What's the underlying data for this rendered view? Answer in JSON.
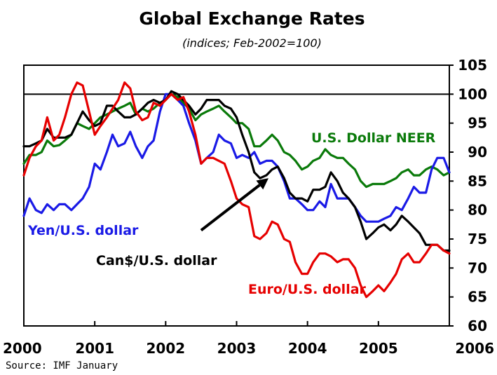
{
  "chart_data": {
    "type": "line",
    "title": "Global Exchange Rates",
    "subtitle": "(indices; Feb-2002=100)",
    "xlabel": "",
    "ylabel": "",
    "xlim": [
      2000,
      2006
    ],
    "ylim": [
      60,
      105
    ],
    "x_ticks": [
      "2000",
      "2001",
      "2002",
      "2003",
      "2004",
      "2005",
      "2006"
    ],
    "y_ticks": [
      60,
      65,
      70,
      75,
      80,
      85,
      90,
      95,
      100,
      105
    ],
    "reference_line": 100,
    "grid": false,
    "source": "Source: IMF January",
    "series": [
      {
        "name": "U.S. Dollar NEER",
        "color": "#0a7a0a",
        "points": [
          [
            2000.0,
            88
          ],
          [
            2000.08,
            89.5
          ],
          [
            2000.17,
            89.5
          ],
          [
            2000.25,
            90
          ],
          [
            2000.33,
            92
          ],
          [
            2000.42,
            91
          ],
          [
            2000.5,
            91.2
          ],
          [
            2000.58,
            92
          ],
          [
            2000.67,
            93
          ],
          [
            2000.75,
            95
          ],
          [
            2000.83,
            94.5
          ],
          [
            2000.92,
            94
          ],
          [
            2001.0,
            95
          ],
          [
            2001.08,
            96
          ],
          [
            2001.17,
            96.5
          ],
          [
            2001.25,
            97
          ],
          [
            2001.33,
            97.5
          ],
          [
            2001.42,
            98
          ],
          [
            2001.5,
            98.5
          ],
          [
            2001.58,
            96.5
          ],
          [
            2001.67,
            97.5
          ],
          [
            2001.75,
            97
          ],
          [
            2001.83,
            97.5
          ],
          [
            2001.92,
            98.5
          ],
          [
            2002.0,
            99
          ],
          [
            2002.08,
            100
          ],
          [
            2002.17,
            99.5
          ],
          [
            2002.25,
            98.5
          ],
          [
            2002.33,
            97.5
          ],
          [
            2002.42,
            95.5
          ],
          [
            2002.5,
            96.5
          ],
          [
            2002.58,
            97
          ],
          [
            2002.67,
            97.5
          ],
          [
            2002.75,
            98
          ],
          [
            2002.83,
            97
          ],
          [
            2002.92,
            96
          ],
          [
            2003.0,
            95
          ],
          [
            2003.08,
            95
          ],
          [
            2003.17,
            94
          ],
          [
            2003.25,
            91
          ],
          [
            2003.33,
            91
          ],
          [
            2003.42,
            92
          ],
          [
            2003.5,
            93
          ],
          [
            2003.58,
            92
          ],
          [
            2003.67,
            90
          ],
          [
            2003.75,
            89.5
          ],
          [
            2003.83,
            88.5
          ],
          [
            2003.92,
            87
          ],
          [
            2004.0,
            87.5
          ],
          [
            2004.08,
            88.5
          ],
          [
            2004.17,
            89
          ],
          [
            2004.25,
            90.5
          ],
          [
            2004.33,
            89.5
          ],
          [
            2004.42,
            89
          ],
          [
            2004.5,
            89
          ],
          [
            2004.58,
            88
          ],
          [
            2004.67,
            87
          ],
          [
            2004.75,
            85
          ],
          [
            2004.83,
            84
          ],
          [
            2004.92,
            84.5
          ],
          [
            2005.0,
            84.5
          ],
          [
            2005.08,
            84.5
          ],
          [
            2005.17,
            85
          ],
          [
            2005.25,
            85.5
          ],
          [
            2005.33,
            86.5
          ],
          [
            2005.42,
            87
          ],
          [
            2005.5,
            86
          ],
          [
            2005.58,
            86
          ],
          [
            2005.67,
            87
          ],
          [
            2005.75,
            87.5
          ],
          [
            2005.83,
            87
          ],
          [
            2005.92,
            86
          ],
          [
            2006.0,
            86.5
          ]
        ]
      },
      {
        "name": "Yen/U.S. dollar",
        "color": "#1a1ae6",
        "points": [
          [
            2000.0,
            79
          ],
          [
            2000.08,
            82
          ],
          [
            2000.17,
            80
          ],
          [
            2000.25,
            79.5
          ],
          [
            2000.33,
            81
          ],
          [
            2000.42,
            80
          ],
          [
            2000.5,
            81
          ],
          [
            2000.58,
            81
          ],
          [
            2000.67,
            80
          ],
          [
            2000.75,
            81
          ],
          [
            2000.83,
            82
          ],
          [
            2000.92,
            84
          ],
          [
            2001.0,
            88
          ],
          [
            2001.08,
            87
          ],
          [
            2001.17,
            90
          ],
          [
            2001.25,
            93
          ],
          [
            2001.33,
            91
          ],
          [
            2001.42,
            91.5
          ],
          [
            2001.5,
            93.5
          ],
          [
            2001.58,
            91
          ],
          [
            2001.67,
            89
          ],
          [
            2001.75,
            91
          ],
          [
            2001.83,
            92
          ],
          [
            2001.92,
            97
          ],
          [
            2002.0,
            100
          ],
          [
            2002.08,
            100
          ],
          [
            2002.17,
            99
          ],
          [
            2002.25,
            98
          ],
          [
            2002.33,
            95
          ],
          [
            2002.42,
            92
          ],
          [
            2002.5,
            88
          ],
          [
            2002.58,
            89
          ],
          [
            2002.67,
            90
          ],
          [
            2002.75,
            93
          ],
          [
            2002.83,
            92
          ],
          [
            2002.92,
            91.5
          ],
          [
            2003.0,
            89
          ],
          [
            2003.08,
            89.5
          ],
          [
            2003.17,
            89
          ],
          [
            2003.25,
            90
          ],
          [
            2003.33,
            88
          ],
          [
            2003.42,
            88.5
          ],
          [
            2003.5,
            88.5
          ],
          [
            2003.58,
            87.5
          ],
          [
            2003.67,
            85
          ],
          [
            2003.75,
            82
          ],
          [
            2003.83,
            82
          ],
          [
            2003.92,
            81
          ],
          [
            2004.0,
            80
          ],
          [
            2004.08,
            80
          ],
          [
            2004.17,
            81.5
          ],
          [
            2004.25,
            80.5
          ],
          [
            2004.33,
            84.5
          ],
          [
            2004.42,
            82
          ],
          [
            2004.5,
            82
          ],
          [
            2004.58,
            82
          ],
          [
            2004.67,
            80.5
          ],
          [
            2004.75,
            79
          ],
          [
            2004.83,
            78
          ],
          [
            2004.92,
            78
          ],
          [
            2005.0,
            78
          ],
          [
            2005.08,
            78.5
          ],
          [
            2005.17,
            79
          ],
          [
            2005.25,
            80.5
          ],
          [
            2005.33,
            80
          ],
          [
            2005.42,
            82
          ],
          [
            2005.5,
            84
          ],
          [
            2005.58,
            83
          ],
          [
            2005.67,
            83
          ],
          [
            2005.75,
            87
          ],
          [
            2005.83,
            89
          ],
          [
            2005.92,
            89
          ],
          [
            2006.0,
            86.5
          ]
        ]
      },
      {
        "name": "Can$/U.S. dollar",
        "color": "#000000",
        "points": [
          [
            2000.0,
            91
          ],
          [
            2000.08,
            91
          ],
          [
            2000.17,
            91.5
          ],
          [
            2000.25,
            92
          ],
          [
            2000.33,
            94
          ],
          [
            2000.42,
            92.5
          ],
          [
            2000.5,
            92.5
          ],
          [
            2000.58,
            92.5
          ],
          [
            2000.67,
            93
          ],
          [
            2000.75,
            95
          ],
          [
            2000.83,
            97
          ],
          [
            2000.92,
            95.5
          ],
          [
            2001.0,
            94.5
          ],
          [
            2001.08,
            95
          ],
          [
            2001.17,
            98
          ],
          [
            2001.25,
            98
          ],
          [
            2001.33,
            97
          ],
          [
            2001.42,
            96
          ],
          [
            2001.5,
            96
          ],
          [
            2001.58,
            96.5
          ],
          [
            2001.67,
            97.5
          ],
          [
            2001.75,
            98.5
          ],
          [
            2001.83,
            99
          ],
          [
            2001.92,
            98.5
          ],
          [
            2002.0,
            99
          ],
          [
            2002.08,
            100.5
          ],
          [
            2002.17,
            100
          ],
          [
            2002.25,
            99
          ],
          [
            2002.33,
            98
          ],
          [
            2002.42,
            96.5
          ],
          [
            2002.5,
            97.5
          ],
          [
            2002.58,
            99
          ],
          [
            2002.67,
            99
          ],
          [
            2002.75,
            99
          ],
          [
            2002.83,
            98
          ],
          [
            2002.92,
            97.5
          ],
          [
            2003.0,
            96
          ],
          [
            2003.08,
            93
          ],
          [
            2003.17,
            90
          ],
          [
            2003.25,
            86.5
          ],
          [
            2003.33,
            85.5
          ],
          [
            2003.42,
            86
          ],
          [
            2003.5,
            87
          ],
          [
            2003.58,
            87.5
          ],
          [
            2003.67,
            85.5
          ],
          [
            2003.75,
            83
          ],
          [
            2003.83,
            82
          ],
          [
            2003.92,
            82
          ],
          [
            2004.0,
            81.5
          ],
          [
            2004.08,
            83.5
          ],
          [
            2004.17,
            83.5
          ],
          [
            2004.25,
            84
          ],
          [
            2004.33,
            86.5
          ],
          [
            2004.42,
            85
          ],
          [
            2004.5,
            83
          ],
          [
            2004.58,
            82
          ],
          [
            2004.67,
            80.5
          ],
          [
            2004.75,
            78
          ],
          [
            2004.83,
            75
          ],
          [
            2004.92,
            76
          ],
          [
            2005.0,
            77
          ],
          [
            2005.08,
            77.5
          ],
          [
            2005.17,
            76.5
          ],
          [
            2005.25,
            77.5
          ],
          [
            2005.33,
            79
          ],
          [
            2005.42,
            78
          ],
          [
            2005.5,
            77
          ],
          [
            2005.58,
            76
          ],
          [
            2005.67,
            74
          ],
          [
            2005.75,
            74
          ],
          [
            2005.83,
            74
          ],
          [
            2005.92,
            73
          ],
          [
            2006.0,
            73
          ]
        ]
      },
      {
        "name": "Euro/U.S. dollar",
        "color": "#e60000",
        "points": [
          [
            2000.0,
            86
          ],
          [
            2000.08,
            89
          ],
          [
            2000.17,
            91
          ],
          [
            2000.25,
            92
          ],
          [
            2000.33,
            96
          ],
          [
            2000.42,
            92
          ],
          [
            2000.5,
            93
          ],
          [
            2000.58,
            96
          ],
          [
            2000.67,
            100
          ],
          [
            2000.75,
            102
          ],
          [
            2000.83,
            101.5
          ],
          [
            2000.92,
            97
          ],
          [
            2001.0,
            93
          ],
          [
            2001.08,
            94.5
          ],
          [
            2001.17,
            96
          ],
          [
            2001.25,
            97.5
          ],
          [
            2001.33,
            99
          ],
          [
            2001.42,
            102
          ],
          [
            2001.5,
            101
          ],
          [
            2001.58,
            97
          ],
          [
            2001.67,
            95.5
          ],
          [
            2001.75,
            96
          ],
          [
            2001.83,
            98.5
          ],
          [
            2001.92,
            98
          ],
          [
            2002.0,
            99
          ],
          [
            2002.08,
            100
          ],
          [
            2002.17,
            99
          ],
          [
            2002.25,
            99.5
          ],
          [
            2002.33,
            97
          ],
          [
            2002.42,
            93
          ],
          [
            2002.5,
            88
          ],
          [
            2002.58,
            89
          ],
          [
            2002.67,
            89
          ],
          [
            2002.75,
            88.5
          ],
          [
            2002.83,
            88
          ],
          [
            2002.92,
            85
          ],
          [
            2003.0,
            82
          ],
          [
            2003.08,
            81
          ],
          [
            2003.17,
            80.5
          ],
          [
            2003.25,
            75.5
          ],
          [
            2003.33,
            75
          ],
          [
            2003.42,
            76
          ],
          [
            2003.5,
            78
          ],
          [
            2003.58,
            77.5
          ],
          [
            2003.67,
            75
          ],
          [
            2003.75,
            74.5
          ],
          [
            2003.83,
            71
          ],
          [
            2003.92,
            69
          ],
          [
            2004.0,
            69
          ],
          [
            2004.08,
            71
          ],
          [
            2004.17,
            72.5
          ],
          [
            2004.25,
            72.5
          ],
          [
            2004.33,
            72
          ],
          [
            2004.42,
            71
          ],
          [
            2004.5,
            71.5
          ],
          [
            2004.58,
            71.5
          ],
          [
            2004.67,
            70
          ],
          [
            2004.75,
            67
          ],
          [
            2004.83,
            65
          ],
          [
            2004.92,
            66
          ],
          [
            2005.0,
            67
          ],
          [
            2005.08,
            66
          ],
          [
            2005.17,
            67.5
          ],
          [
            2005.25,
            69
          ],
          [
            2005.33,
            71.5
          ],
          [
            2005.42,
            72.5
          ],
          [
            2005.5,
            71
          ],
          [
            2005.58,
            71
          ],
          [
            2005.67,
            72.5
          ],
          [
            2005.75,
            74
          ],
          [
            2005.83,
            74
          ],
          [
            2005.92,
            73
          ],
          [
            2006.0,
            72.5
          ]
        ]
      }
    ],
    "annotations": [
      {
        "label": "U.S. Dollar NEER",
        "color": "#0a7a0a"
      },
      {
        "label": "Yen/U.S. dollar",
        "color": "#1a1ae6"
      },
      {
        "label": "Can$/U.S. dollar",
        "color": "#000000"
      },
      {
        "label": "Euro/U.S. dollar",
        "color": "#e60000"
      }
    ],
    "arrow": {
      "from": [
        2002.5,
        76.5
      ],
      "to": [
        2003.45,
        85.5
      ],
      "color": "#000000"
    }
  }
}
